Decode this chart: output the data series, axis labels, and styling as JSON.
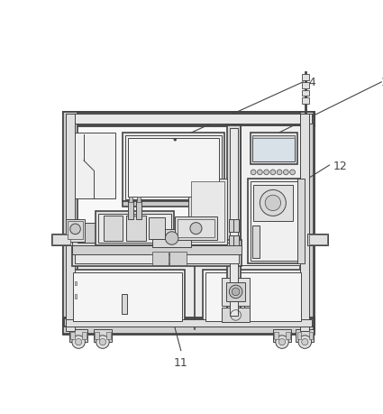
{
  "bg": "#ffffff",
  "lc": "#444444",
  "fc_light": "#f0f0f0",
  "fc_mid": "#e0e0e0",
  "fc_dark": "#c8c8c8",
  "fc_white": "#fafafa",
  "label_fs": 9,
  "label_color": "#444444",
  "lw_heavy": 2.0,
  "lw_med": 1.2,
  "lw_thin": 0.7,
  "lw_vt": 0.5
}
